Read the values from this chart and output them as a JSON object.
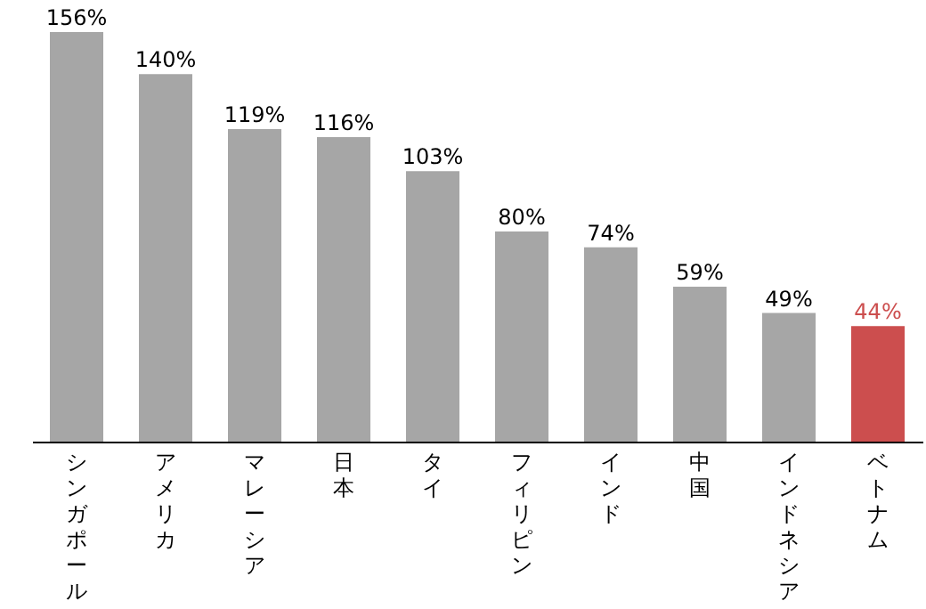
{
  "chart_data": {
    "type": "bar",
    "categories": [
      "シンガポール",
      "アメリカ",
      "マレーシア",
      "日本",
      "タイ",
      "フィリピン",
      "インド",
      "中国",
      "インドネシア",
      "ベトナム"
    ],
    "values": [
      156,
      140,
      119,
      116,
      103,
      80,
      74,
      59,
      49,
      44
    ],
    "value_labels": [
      "156%",
      "140%",
      "119%",
      "116%",
      "103%",
      "80%",
      "74%",
      "59%",
      "49%",
      "44%"
    ],
    "colors": [
      "#a6a6a6",
      "#a6a6a6",
      "#a6a6a6",
      "#a6a6a6",
      "#a6a6a6",
      "#a6a6a6",
      "#a6a6a6",
      "#a6a6a6",
      "#a6a6a6",
      "#cc4e4e"
    ],
    "tick_labels": "x",
    "grid": false
  }
}
